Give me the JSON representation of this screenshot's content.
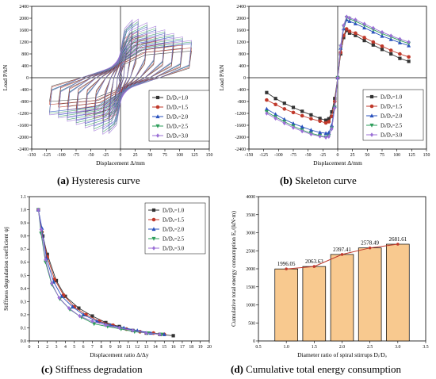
{
  "captions": {
    "a_letter": "(a)",
    "a_text": "Hysteresis curve",
    "b_letter": "(b)",
    "b_text": "Skeleton curve",
    "c_letter": "(c)",
    "c_text": "Stiffness degradation",
    "d_letter": "(d)",
    "d_text": "Cumulative total energy consumption"
  },
  "legend_labels": [
    "Dᵢ/Dₒ=1.0",
    "Dᵢ/Dₒ=1.5",
    "Dᵢ/Dₒ=2.0",
    "Dᵢ/Dₒ=2.5",
    "Dᵢ/Dₒ=3.0"
  ],
  "series_colors": [
    "#333333",
    "#c0392b",
    "#2a52be",
    "#2e9e5b",
    "#9b6fd6"
  ],
  "chart_data": [
    {
      "id": "a",
      "type": "line",
      "xlabel": "Displacement Δ/mm",
      "ylabel": "Load P/kN",
      "xlim": [
        -150,
        150
      ],
      "ylim": [
        -2400,
        2400
      ],
      "xticks": [
        -150,
        -125,
        -100,
        -75,
        -50,
        -25,
        0,
        25,
        50,
        75,
        100,
        125,
        150
      ],
      "yticks": [
        -2400,
        -2000,
        -1600,
        -1200,
        -800,
        -400,
        0,
        400,
        800,
        1200,
        1600,
        2000,
        2400
      ],
      "cycle_amplitudes_mm": [
        5,
        10,
        20,
        30,
        45,
        60,
        75,
        90,
        105,
        120
      ],
      "series": [
        {
          "peak_pos": 1480,
          "peak_neg": -1380,
          "residual_pos": 900,
          "residual_neg": -800
        },
        {
          "peak_pos": 1620,
          "peak_neg": -1520,
          "residual_pos": 1000,
          "residual_neg": -900
        },
        {
          "peak_pos": 1900,
          "peak_neg": -1800,
          "residual_pos": 1150,
          "residual_neg": -1150
        },
        {
          "peak_pos": 1960,
          "peak_neg": -1900,
          "residual_pos": 1200,
          "residual_neg": -1200
        },
        {
          "peak_pos": 2050,
          "peak_neg": -1980,
          "residual_pos": 1250,
          "residual_neg": -1250
        }
      ]
    },
    {
      "id": "b",
      "type": "line",
      "xlabel": "Displacement Δ/mm",
      "ylabel": "Load P/kN",
      "xlim": [
        -150,
        150
      ],
      "ylim": [
        -2400,
        2400
      ],
      "xticks": [
        -150,
        -125,
        -100,
        -75,
        -50,
        -25,
        0,
        25,
        50,
        75,
        100,
        125,
        150
      ],
      "yticks": [
        -2400,
        -2000,
        -1600,
        -1200,
        -800,
        -400,
        0,
        400,
        800,
        1200,
        1600,
        2000,
        2400
      ],
      "legend_position": "lower-right",
      "x": [
        -120,
        -105,
        -90,
        -75,
        -60,
        -45,
        -30,
        -20,
        -15,
        -10,
        -5,
        0,
        5,
        10,
        15,
        20,
        30,
        45,
        60,
        75,
        90,
        105,
        120
      ],
      "series": [
        {
          "name": "Dᵢ/Dₒ=1.0",
          "values": [
            -500,
            -700,
            -860,
            -1000,
            -1130,
            -1250,
            -1370,
            -1430,
            -1380,
            -1150,
            -700,
            0,
            800,
            1350,
            1590,
            1500,
            1420,
            1250,
            1100,
            950,
            800,
            650,
            550
          ]
        },
        {
          "name": "Dᵢ/Dₒ=1.5",
          "values": [
            -750,
            -900,
            -1050,
            -1170,
            -1280,
            -1380,
            -1460,
            -1520,
            -1480,
            -1300,
            -800,
            0,
            850,
            1420,
            1640,
            1560,
            1500,
            1350,
            1200,
            1060,
            920,
            800,
            700
          ]
        },
        {
          "name": "Dᵢ/Dₒ=2.0",
          "values": [
            -1050,
            -1230,
            -1400,
            -1540,
            -1650,
            -1760,
            -1840,
            -1870,
            -1850,
            -1600,
            -950,
            0,
            1000,
            1650,
            1950,
            1900,
            1820,
            1680,
            1540,
            1400,
            1290,
            1180,
            1080
          ]
        },
        {
          "name": "Dᵢ/Dₒ=2.5",
          "values": [
            -1150,
            -1320,
            -1480,
            -1630,
            -1760,
            -1870,
            -1950,
            -2000,
            -1960,
            -1700,
            -1000,
            0,
            1050,
            1720,
            2020,
            1980,
            1900,
            1760,
            1620,
            1480,
            1370,
            1250,
            1150
          ]
        },
        {
          "name": "Dᵢ/Dₒ=3.0",
          "values": [
            -1200,
            -1370,
            -1530,
            -1680,
            -1800,
            -1900,
            -1970,
            -2010,
            -1980,
            -1720,
            -1020,
            0,
            1080,
            1760,
            2050,
            2010,
            1950,
            1810,
            1670,
            1530,
            1410,
            1300,
            1200
          ]
        }
      ]
    },
    {
      "id": "c",
      "type": "line",
      "xlabel": "Displacement ratio Δ/Δy",
      "ylabel": "Stiffness degradation coefficient ψj",
      "xlim": [
        0,
        20
      ],
      "ylim": [
        0,
        1.1
      ],
      "xticks": [
        0,
        1,
        2,
        3,
        4,
        5,
        6,
        7,
        8,
        9,
        10,
        11,
        12,
        13,
        14,
        15,
        16,
        17,
        18,
        19,
        20
      ],
      "yticks": [
        0.0,
        0.1,
        0.2,
        0.3,
        0.4,
        0.5,
        0.6,
        0.7,
        0.8,
        0.9,
        1.0,
        1.1
      ],
      "legend_position": "top-right",
      "series": [
        {
          "name": "Dᵢ/Dₒ=1.0",
          "x": [
            1,
            1.5,
            2,
            3,
            4,
            5.5,
            7,
            8.5,
            10,
            11.5,
            13,
            14.5,
            16
          ],
          "values": [
            1.0,
            0.8,
            0.66,
            0.46,
            0.34,
            0.25,
            0.19,
            0.14,
            0.11,
            0.08,
            0.06,
            0.05,
            0.04
          ]
        },
        {
          "name": "Dᵢ/Dₒ=1.5",
          "x": [
            1,
            1.4,
            2,
            2.8,
            3.8,
            5,
            6.3,
            7.8,
            9.3,
            10.8,
            12.3,
            13.8,
            15
          ],
          "values": [
            1.0,
            0.83,
            0.64,
            0.47,
            0.35,
            0.26,
            0.2,
            0.15,
            0.12,
            0.09,
            0.07,
            0.06,
            0.05
          ]
        },
        {
          "name": "Dᵢ/Dₒ=2.0",
          "x": [
            1,
            1.4,
            1.9,
            2.7,
            3.6,
            4.8,
            6,
            7.5,
            9,
            10.5,
            12,
            13.5,
            15
          ],
          "values": [
            1.0,
            0.86,
            0.63,
            0.45,
            0.34,
            0.26,
            0.2,
            0.15,
            0.12,
            0.1,
            0.08,
            0.06,
            0.05
          ]
        },
        {
          "name": "Dᵢ/Dₒ=2.5",
          "x": [
            1,
            1.3,
            1.8,
            2.5,
            3.4,
            4.5,
            5.8,
            7.2,
            8.7,
            10.2,
            11.7,
            13.2,
            14.7
          ],
          "values": [
            1.0,
            0.82,
            0.6,
            0.43,
            0.32,
            0.24,
            0.18,
            0.13,
            0.11,
            0.09,
            0.07,
            0.06,
            0.05
          ]
        },
        {
          "name": "Dᵢ/Dₒ=3.0",
          "x": [
            1,
            1.3,
            1.8,
            2.5,
            3.3,
            4.4,
            5.6,
            7,
            8.5,
            10,
            11.5,
            13,
            14.5
          ],
          "values": [
            1.0,
            0.85,
            0.62,
            0.44,
            0.33,
            0.25,
            0.19,
            0.15,
            0.12,
            0.1,
            0.08,
            0.06,
            0.05
          ]
        }
      ]
    },
    {
      "id": "d",
      "type": "bar",
      "xlabel": "Diameter ratio of spiral stirrups Dᵢ/Dₒ",
      "ylabel": "Cumulative total energy consumption Eₐ/(kN·m)",
      "xlim": [
        0.5,
        3.5
      ],
      "ylim": [
        0,
        4000
      ],
      "xticks": [
        0.5,
        1.0,
        1.5,
        2.0,
        2.5,
        3.0,
        3.5
      ],
      "yticks": [
        0,
        500,
        1000,
        1500,
        2000,
        2500,
        3000,
        3500,
        4000
      ],
      "categories": [
        1.0,
        1.5,
        2.0,
        2.5,
        3.0
      ],
      "values": [
        1996.05,
        2063.63,
        2397.41,
        2578.49,
        2681.61
      ],
      "value_labels": [
        "1996.05",
        "2063.63",
        "2397.41",
        "2578.49",
        "2681.61"
      ],
      "bar_color": "#f8c98f",
      "line_color": "#c0392b"
    }
  ]
}
